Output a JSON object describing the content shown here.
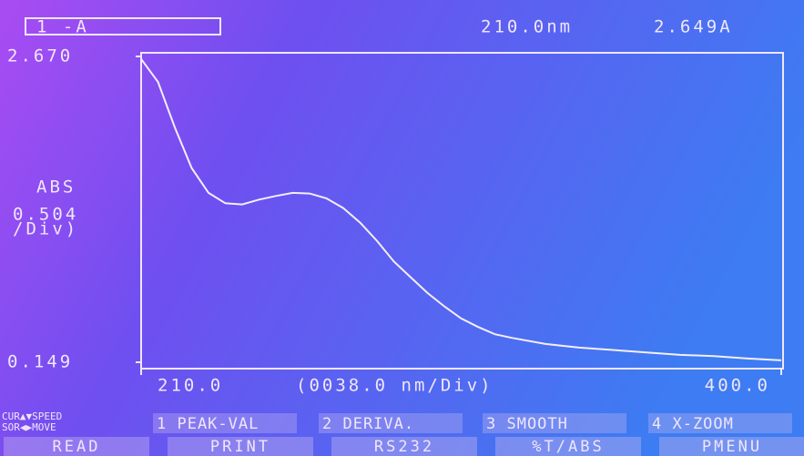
{
  "chart_data": {
    "type": "line",
    "status": {
      "mode": "1 -A",
      "wavelength": "210.0nm",
      "absorbance": "2.649A"
    },
    "ylabel": "ABS",
    "ydiv": [
      "0.504",
      "/Div)"
    ],
    "xdiv": "(0038.0 nm/Div)",
    "x": [
      210,
      215,
      220,
      225,
      230,
      235,
      240,
      245,
      250,
      255,
      260,
      265,
      270,
      275,
      280,
      285,
      290,
      295,
      300,
      305,
      310,
      315,
      320,
      330,
      340,
      350,
      360,
      370,
      380,
      390,
      400
    ],
    "series": [
      {
        "color": "#f4eefc",
        "values": [
          2.649,
          2.46,
          2.085,
          1.75,
          1.545,
          1.46,
          1.45,
          1.49,
          1.52,
          1.545,
          1.54,
          1.5,
          1.42,
          1.3,
          1.15,
          0.98,
          0.85,
          0.72,
          0.61,
          0.51,
          0.44,
          0.38,
          0.35,
          0.3,
          0.27,
          0.25,
          0.23,
          0.21,
          0.2,
          0.18,
          0.165
        ]
      }
    ],
    "xlim": [
      210,
      400
    ],
    "xticks": [
      {
        "value": 210,
        "label": "210.0"
      },
      {
        "value": 400,
        "label": "400.0"
      }
    ],
    "ylim": [
      0.149,
      2.67
    ],
    "yticks": [
      {
        "value": 0.149,
        "label": "0.149"
      },
      {
        "value": 2.67,
        "label": "2.670"
      }
    ]
  },
  "menu": {
    "cursor": [
      "CUR▲▼SPEED",
      "SOR◀▶MOVE"
    ],
    "functions": [
      "1 PEAK-VAL",
      "2 DERIVA.",
      "3 SMOOTH",
      "4 X-ZOOM"
    ],
    "keys": [
      "READ",
      "PRINT",
      "RS232",
      "%T/ABS",
      "PMENU"
    ]
  }
}
